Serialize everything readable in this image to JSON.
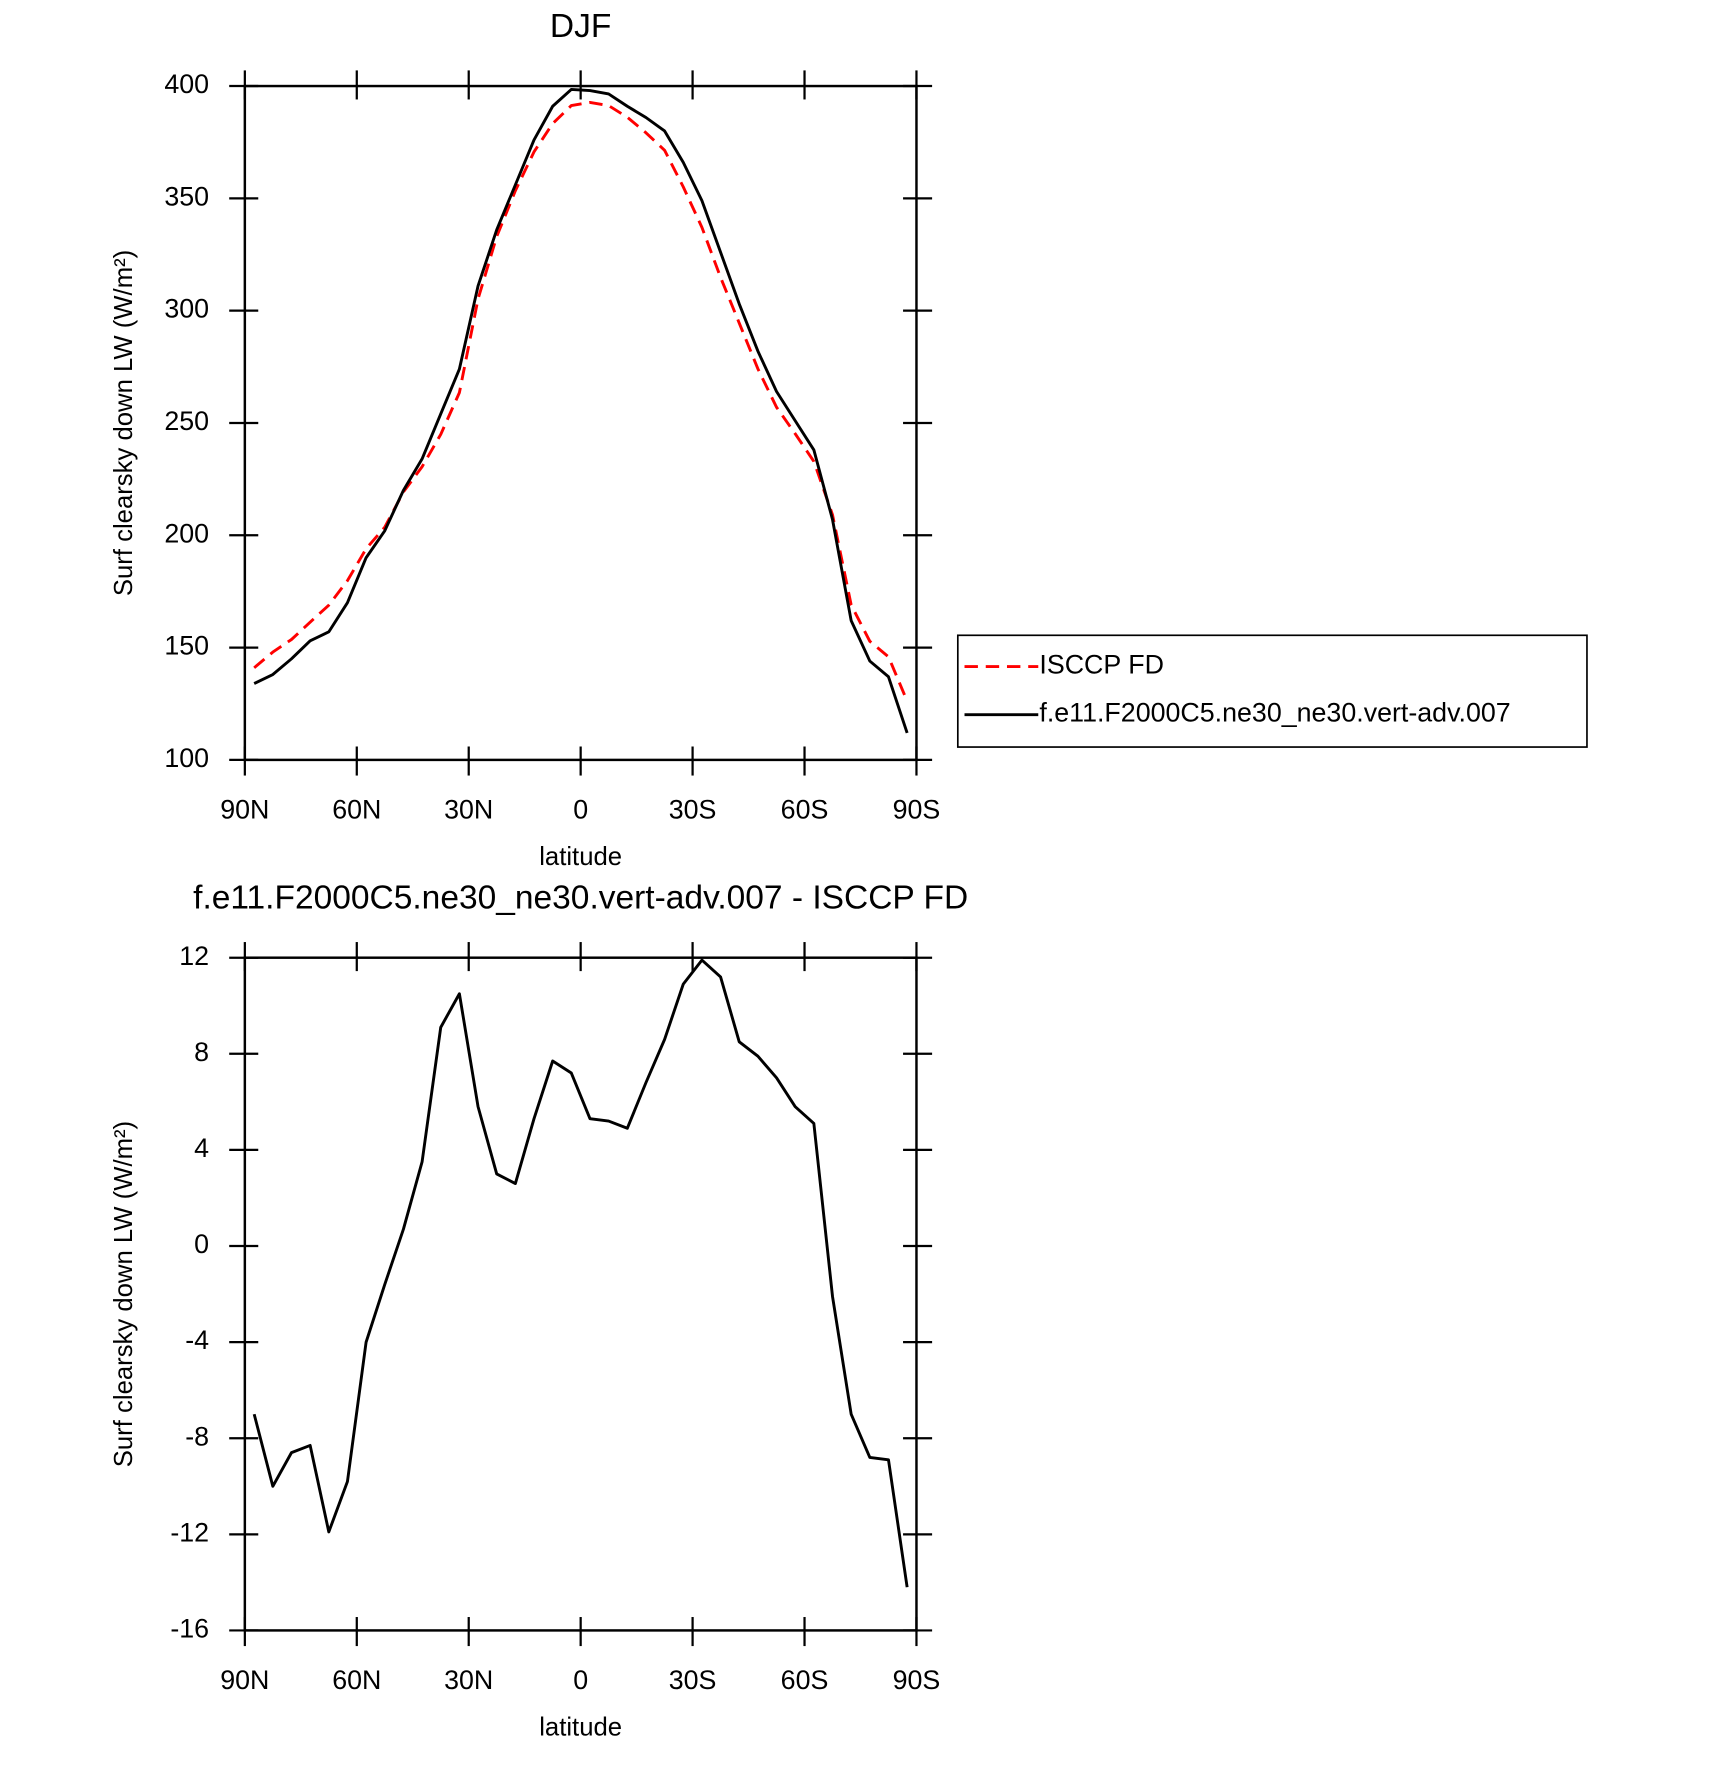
{
  "chart_data": [
    {
      "type": "line",
      "title": "DJF",
      "xlabel": "latitude",
      "ylabel": "Surf clearsky down LW (W/m²)",
      "x": [
        87.5,
        82.5,
        77.5,
        72.5,
        67.5,
        62.5,
        57.5,
        52.5,
        47.5,
        42.5,
        37.5,
        32.5,
        27.5,
        22.5,
        17.5,
        12.5,
        7.5,
        2.5,
        -2.5,
        -7.5,
        -12.5,
        -17.5,
        -22.5,
        -27.5,
        -32.5,
        -37.5,
        -42.5,
        -47.5,
        -52.5,
        -57.5,
        -62.5,
        -67.5,
        -72.5,
        -77.5,
        -82.5,
        -87.5
      ],
      "xlim": [
        90,
        -90
      ],
      "xticks": [
        {
          "value": 90,
          "label": "90N"
        },
        {
          "value": 60,
          "label": "60N"
        },
        {
          "value": 30,
          "label": "30N"
        },
        0,
        {
          "value": -30,
          "label": "30S"
        },
        {
          "value": -60,
          "label": "60S"
        },
        {
          "value": -90,
          "label": "90S"
        }
      ],
      "ylim": [
        100,
        400
      ],
      "yticks": [
        100,
        150,
        200,
        250,
        300,
        350,
        400
      ],
      "legend": "right",
      "series": [
        {
          "name": "ISCCP FD",
          "color": "#ff0000",
          "dash": true,
          "values": [
            141,
            148,
            153.6,
            161.3,
            168.9,
            179.8,
            194,
            203.6,
            219.3,
            230.5,
            244.9,
            263.5,
            305.2,
            333,
            353.4,
            370.7,
            383.3,
            391.3,
            392.7,
            391.3,
            386.1,
            379.2,
            371.4,
            355.1,
            337.1,
            314.8,
            294.5,
            274.1,
            257,
            245.2,
            232.9,
            209.1,
            169,
            152.8,
            145.9,
            126.2
          ]
        },
        {
          "name": "f.e11.F2000C5.ne30_ne30.vert-adv.007",
          "color": "#000000",
          "dash": false,
          "values": [
            134,
            138,
            145,
            153,
            157,
            170,
            190,
            202,
            220,
            234,
            254,
            274,
            311,
            336,
            356,
            376,
            391,
            398.5,
            398,
            396.5,
            391,
            386,
            380,
            366,
            349,
            326,
            303,
            282,
            264,
            251,
            238,
            207,
            162,
            144,
            137,
            112
          ]
        }
      ]
    },
    {
      "type": "line",
      "title": "f.e11.F2000C5.ne30_ne30.vert-adv.007 - ISCCP FD",
      "xlabel": "latitude",
      "ylabel": "Surf clearsky down LW (W/m²)",
      "x": [
        87.5,
        82.5,
        77.5,
        72.5,
        67.5,
        62.5,
        57.5,
        52.5,
        47.5,
        42.5,
        37.5,
        32.5,
        27.5,
        22.5,
        17.5,
        12.5,
        7.5,
        2.5,
        -2.5,
        -7.5,
        -12.5,
        -17.5,
        -22.5,
        -27.5,
        -32.5,
        -37.5,
        -42.5,
        -47.5,
        -52.5,
        -57.5,
        -62.5,
        -67.5,
        -72.5,
        -77.5,
        -82.5,
        -87.5
      ],
      "xlim": [
        90,
        -90
      ],
      "xticks": [
        {
          "value": 90,
          "label": "90N"
        },
        {
          "value": 60,
          "label": "60N"
        },
        {
          "value": 30,
          "label": "30N"
        },
        0,
        {
          "value": -30,
          "label": "30S"
        },
        {
          "value": -60,
          "label": "60S"
        },
        {
          "value": -90,
          "label": "90S"
        }
      ],
      "ylim": [
        -16,
        12
      ],
      "yticks": [
        -16,
        -12,
        -8,
        -4,
        0,
        4,
        8,
        12
      ],
      "color": "#000000",
      "values": [
        -7,
        -10,
        -8.6,
        -8.3,
        -11.9,
        -9.8,
        -4,
        -1.6,
        0.7,
        3.5,
        9.1,
        10.5,
        5.8,
        3,
        2.6,
        5.3,
        7.7,
        7.2,
        5.3,
        5.2,
        4.9,
        6.8,
        8.6,
        10.9,
        11.9,
        11.2,
        8.5,
        7.9,
        7,
        5.8,
        5.1,
        -2.1,
        -7,
        -8.8,
        -8.9,
        -14.2
      ]
    }
  ]
}
